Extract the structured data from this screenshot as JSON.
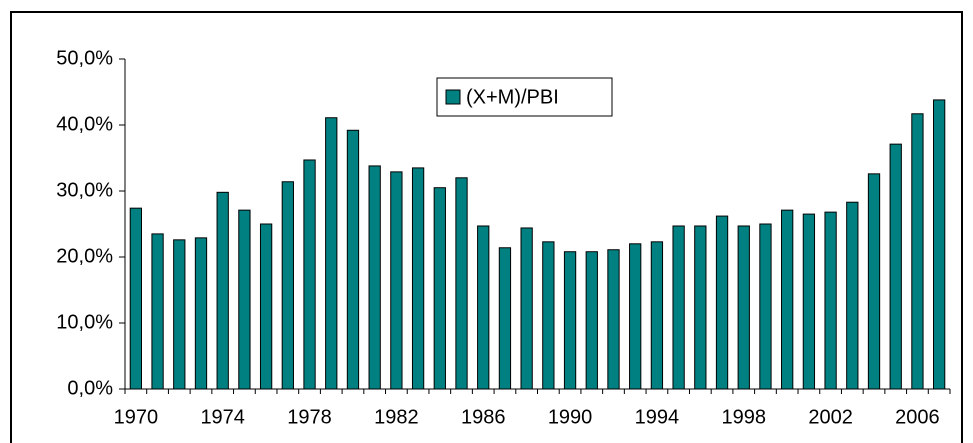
{
  "chart_data": {
    "type": "bar",
    "categories": [
      "1970",
      null,
      null,
      null,
      "1974",
      null,
      null,
      null,
      "1978",
      null,
      null,
      null,
      "1982",
      null,
      null,
      null,
      "1986",
      null,
      null,
      null,
      "1990",
      null,
      null,
      null,
      "1994",
      null,
      null,
      null,
      "1998",
      null,
      null,
      null,
      "2002",
      null,
      null,
      null,
      "2006",
      null
    ],
    "series": [
      {
        "name": "(X+M)/PBI",
        "color": "#008080",
        "values": [
          27.4,
          23.5,
          22.6,
          22.9,
          29.8,
          27.1,
          25.0,
          31.4,
          34.7,
          41.1,
          39.2,
          33.8,
          32.9,
          33.5,
          30.5,
          32.0,
          24.7,
          21.4,
          24.4,
          22.3,
          20.8,
          20.8,
          21.1,
          22.0,
          22.3,
          24.7,
          24.7,
          26.2,
          24.7,
          25.0,
          27.1,
          26.5,
          26.8,
          28.3,
          32.6,
          37.1,
          41.7,
          43.8
        ]
      }
    ],
    "ylim": [
      0,
      50
    ],
    "yticks": [
      {
        "value": 0,
        "label": "0,0%"
      },
      {
        "value": 10,
        "label": "10,0%"
      },
      {
        "value": 20,
        "label": "20,0%"
      },
      {
        "value": 30,
        "label": "30,0%"
      },
      {
        "value": 40,
        "label": "40,0%"
      },
      {
        "value": 50,
        "label": "50,0%"
      }
    ],
    "grid": false,
    "legend": "top-center"
  }
}
